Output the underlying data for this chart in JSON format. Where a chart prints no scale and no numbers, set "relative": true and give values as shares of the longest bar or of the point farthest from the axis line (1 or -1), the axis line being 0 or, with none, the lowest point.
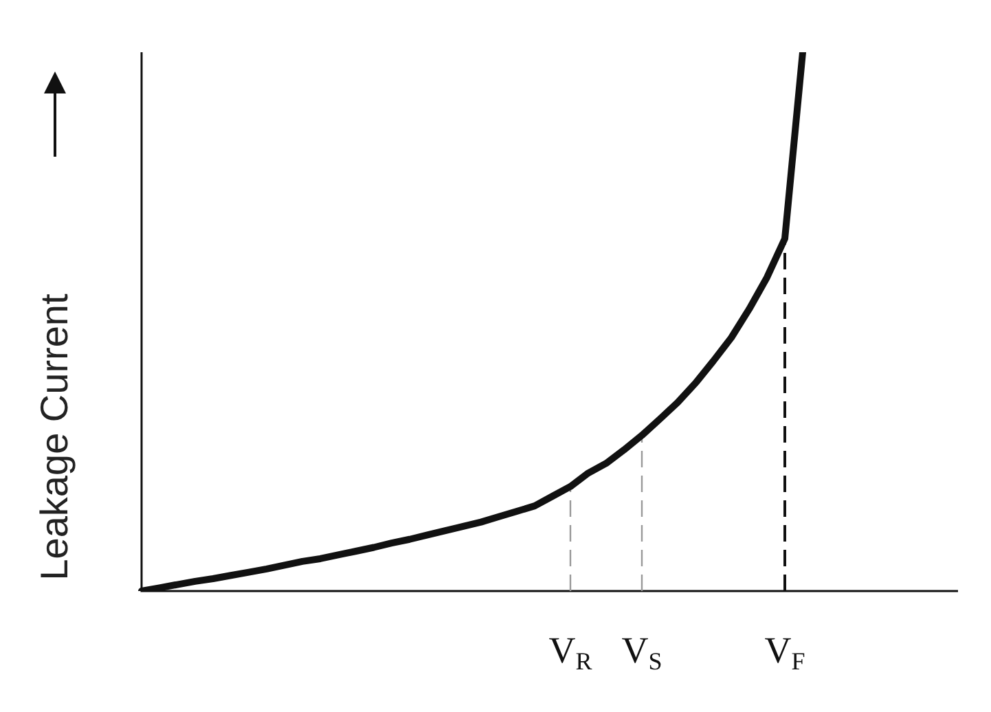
{
  "chart_data": {
    "type": "line",
    "relative": true,
    "ylabel": "Leakage Current",
    "tick_labels": "x",
    "legend": false,
    "marker": "none",
    "line_style": "solid",
    "categories": [
      null,
      null,
      null,
      null,
      null,
      null,
      null,
      null,
      null,
      null,
      null,
      null,
      null,
      null,
      null,
      null,
      null,
      null,
      null,
      null,
      null,
      null,
      null,
      null,
      "V$_{R}$",
      null,
      null,
      null,
      "V$_{S}$",
      null,
      null,
      null,
      null,
      null,
      null,
      null,
      "V$_{F}$",
      null,
      null,
      null,
      null,
      null,
      null,
      null,
      null,
      null
    ],
    "series": [
      {
        "color": "#111111",
        "values": [
          0,
          0.006,
          0.012,
          0.018,
          0.023,
          0.029,
          0.035,
          0.041,
          0.048,
          0.055,
          0.06,
          0.067,
          0.074,
          0.081,
          0.089,
          0.096,
          0.104,
          0.112,
          0.12,
          0.128,
          0.138,
          0.148,
          0.158,
          0.176,
          0.194,
          0.219,
          0.237,
          0.262,
          0.289,
          0.319,
          0.35,
          0.386,
          0.427,
          0.47,
          0.523,
          0.582,
          0.654,
          1,
          null,
          null,
          null,
          null,
          null,
          null,
          null,
          null
        ]
      }
    ],
    "ref_lines": [
      {
        "axis": "x",
        "value": "V$_{R}$",
        "color": "#999999",
        "line_style": "dashed"
      },
      {
        "axis": "x",
        "value": "V$_{S}$",
        "color": "#999999",
        "line_style": "dashed"
      },
      {
        "axis": "x",
        "value": "V$_{F}$",
        "color": "#111111",
        "line_style": "dashed"
      }
    ]
  }
}
